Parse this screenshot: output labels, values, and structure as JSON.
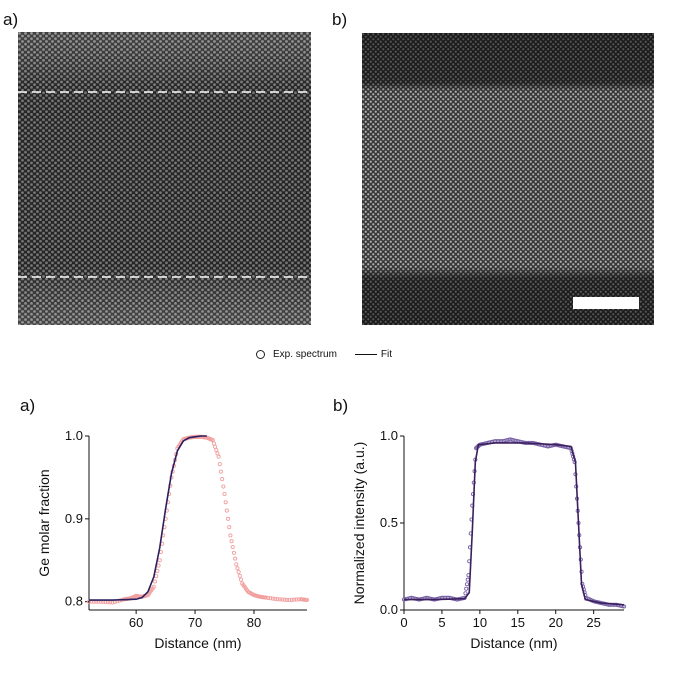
{
  "panels": {
    "top_left_label": "a)",
    "top_right_label": "b)",
    "bottom_left_label": "a)",
    "bottom_right_label": "b)"
  },
  "legend": {
    "exp_label": "Exp. spectrum",
    "fit_label": "Fit"
  },
  "colors": {
    "exp_left": "#f2a0a0",
    "fit_left": "#2a2060",
    "exp_right": "#7a64a8",
    "fit_right": "#3a1f5c"
  },
  "chart_data": [
    {
      "type": "line",
      "xlabel": "Distance (nm)",
      "ylabel": "Ge molar fraction",
      "xlim": [
        52,
        89
      ],
      "ylim": [
        0.79,
        1.0
      ],
      "xticks": [
        60,
        70,
        80
      ],
      "yticks": [
        0.8,
        0.9,
        1.0
      ],
      "ytick_labels": [
        "0.8",
        "0.9",
        "1.0"
      ],
      "series": [
        {
          "name": "Exp. spectrum",
          "style": "markers",
          "x": [
            52,
            54,
            56,
            58,
            59,
            60,
            61,
            62,
            63,
            64,
            65,
            66,
            67,
            68,
            69,
            70,
            71,
            72,
            73,
            74,
            75,
            76,
            77,
            78,
            79,
            80,
            81,
            82,
            84,
            86,
            88,
            89
          ],
          "y": [
            0.8,
            0.8,
            0.799,
            0.803,
            0.804,
            0.807,
            0.806,
            0.808,
            0.818,
            0.85,
            0.9,
            0.95,
            0.985,
            0.996,
            0.998,
            0.999,
            0.999,
            0.998,
            0.995,
            0.975,
            0.93,
            0.88,
            0.845,
            0.822,
            0.812,
            0.808,
            0.806,
            0.805,
            0.803,
            0.802,
            0.803,
            0.802
          ]
        },
        {
          "name": "Fit",
          "style": "line",
          "x": [
            52,
            56,
            60,
            61,
            62,
            63,
            64,
            65,
            66,
            67,
            68,
            69,
            70,
            71,
            72
          ],
          "y": [
            0.802,
            0.802,
            0.803,
            0.805,
            0.812,
            0.83,
            0.865,
            0.912,
            0.955,
            0.982,
            0.994,
            0.998,
            0.999,
            1.0,
            1.0
          ]
        }
      ]
    },
    {
      "type": "line",
      "xlabel": "Distance (nm)",
      "ylabel": "Normalized intensity (a.u.)",
      "xlim": [
        0,
        29
      ],
      "ylim": [
        0,
        1.0
      ],
      "xticks": [
        0,
        5,
        10,
        15,
        20,
        25
      ],
      "yticks": [
        0.0,
        0.5,
        1.0
      ],
      "ytick_labels": [
        "0.0",
        "0.5",
        "1.0"
      ],
      "series": [
        {
          "name": "Exp. spectrum",
          "style": "markers",
          "x": [
            0,
            1,
            2,
            3,
            4,
            5,
            6,
            7,
            8,
            8.5,
            9,
            9.5,
            10,
            11,
            12,
            13,
            14,
            15,
            16,
            17,
            18,
            19,
            20,
            21,
            22,
            22.5,
            23,
            23.5,
            24,
            25,
            26,
            27,
            28,
            29
          ],
          "y": [
            0.06,
            0.07,
            0.06,
            0.07,
            0.06,
            0.07,
            0.07,
            0.06,
            0.07,
            0.2,
            0.6,
            0.93,
            0.95,
            0.96,
            0.97,
            0.97,
            0.98,
            0.97,
            0.96,
            0.96,
            0.95,
            0.94,
            0.95,
            0.94,
            0.93,
            0.85,
            0.5,
            0.15,
            0.07,
            0.05,
            0.04,
            0.03,
            0.03,
            0.02
          ]
        },
        {
          "name": "Fit",
          "style": "line",
          "x": [
            0,
            4,
            8,
            8.6,
            9,
            9.4,
            9.8,
            12,
            16,
            20,
            22,
            22.6,
            23,
            23.4,
            23.9,
            26,
            29
          ],
          "y": [
            0.06,
            0.06,
            0.065,
            0.1,
            0.45,
            0.85,
            0.95,
            0.96,
            0.96,
            0.95,
            0.94,
            0.85,
            0.5,
            0.15,
            0.06,
            0.04,
            0.03
          ]
        }
      ]
    }
  ]
}
